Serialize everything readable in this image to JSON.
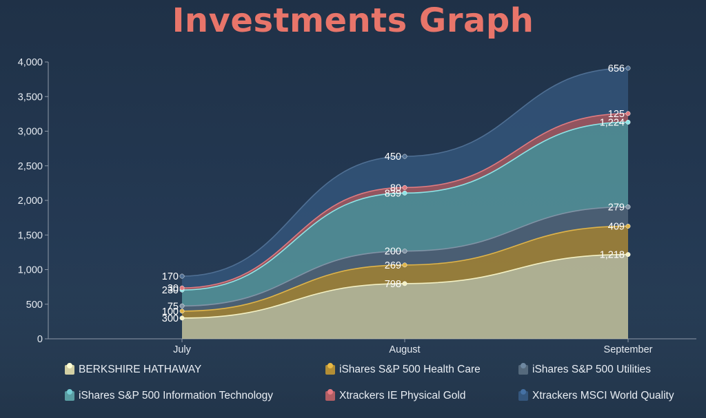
{
  "title": "Investments Graph",
  "chart_data": {
    "type": "area",
    "stacked": true,
    "categories": [
      "July",
      "August",
      "September"
    ],
    "ylim": [
      0,
      4000
    ],
    "yticks": [
      0,
      500,
      1000,
      1500,
      2000,
      2500,
      3000,
      3500,
      4000
    ],
    "ytick_labels": [
      "0",
      "500",
      "1,000",
      "1,500",
      "2,000",
      "2,500",
      "3,000",
      "3,500",
      "4,000"
    ],
    "grid": false,
    "legend": "bottom",
    "series": [
      {
        "name": "BERKSHIRE HATHAWAY",
        "values": [
          300,
          798,
          1218
        ],
        "labels": [
          "300",
          "798",
          "1,218"
        ],
        "color": "#d3d0a4",
        "line": "#f4f1c4"
      },
      {
        "name": "iShares S&P 500 Health Care",
        "values": [
          100,
          269,
          409
        ],
        "labels": [
          "100",
          "269",
          "409"
        ],
        "color": "#b38e35",
        "line": "#e0b549"
      },
      {
        "name": "iShares S&P 500 Utilities",
        "values": [
          75,
          200,
          279
        ],
        "labels": [
          "75",
          "200",
          "279"
        ],
        "color": "#55697c",
        "line": "#8194a6"
      },
      {
        "name": "iShares S&P 500 Information Technology",
        "values": [
          230,
          839,
          1224
        ],
        "labels": [
          "230",
          "839",
          "1,224"
        ],
        "color": "#5a9ea3",
        "line": "#8fe4e6"
      },
      {
        "name": "Xtrackers IE Physical Gold",
        "values": [
          30,
          80,
          125
        ],
        "labels": [
          "30",
          "80",
          "125"
        ],
        "color": "#b25e64",
        "line": "#e07b80"
      },
      {
        "name": "Xtrackers MSCI World Quality",
        "values": [
          170,
          450,
          656
        ],
        "labels": [
          "170",
          "450",
          "656"
        ],
        "color": "#35577e",
        "line": "#4f6f93"
      }
    ]
  }
}
